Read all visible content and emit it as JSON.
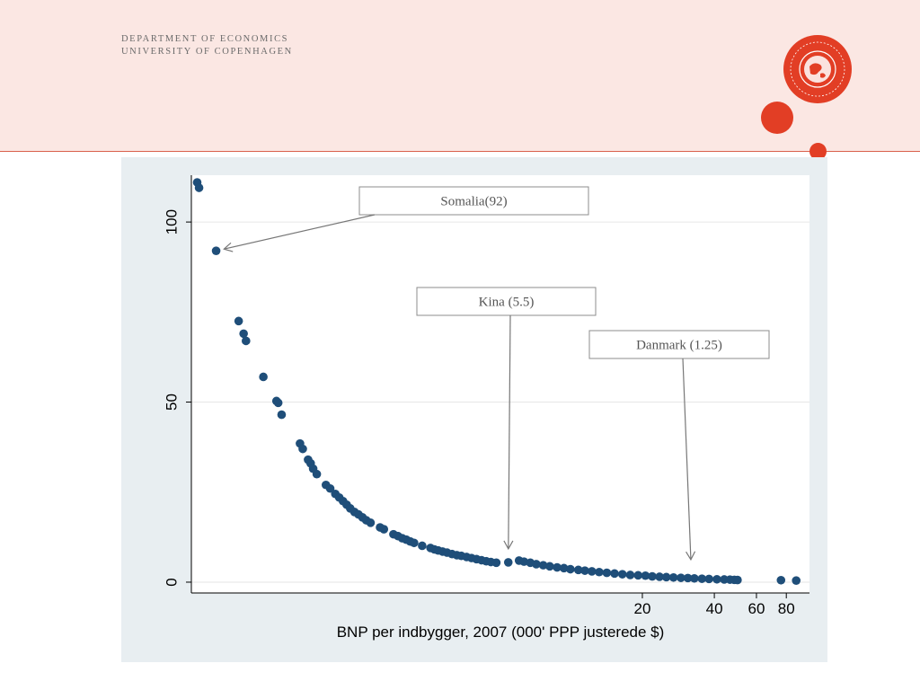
{
  "header": {
    "line1": "DEPARTMENT OF ECONOMICS",
    "line2": "UNIVERSITY OF COPENHAGEN",
    "seal_label": "SOCIALIS · SIGILLUM FACULTATIS SCIENTIARUM",
    "accent_color": "#e23e25",
    "band_color": "#fbe7e3"
  },
  "chart_data": {
    "type": "scatter",
    "title": "",
    "xlabel": "BNP per indbygger, 2007 (000' PPP justerede $)",
    "ylabel": "",
    "x_scale": "log",
    "xlim": [
      0.26,
      100
    ],
    "ylim": [
      -3,
      113
    ],
    "x_ticks": [
      "20",
      "40",
      "60",
      "80"
    ],
    "x_tick_values": [
      20,
      40,
      60,
      80
    ],
    "y_ticks": [
      "0",
      "50",
      "100"
    ],
    "y_tick_values": [
      0,
      50,
      100
    ],
    "grid": "horizontal",
    "marker_color": "#1f4e79",
    "annotations": [
      {
        "label": "Somalia(92)",
        "x": 0.33,
        "y": 92
      },
      {
        "label": "Kina (5.5)",
        "x": 5.5,
        "y": 7
      },
      {
        "label": "Danmark (1.25)",
        "x": 32,
        "y": 4
      }
    ],
    "points": [
      [
        0.275,
        111
      ],
      [
        0.28,
        109.5
      ],
      [
        0.33,
        92
      ],
      [
        0.41,
        72.5
      ],
      [
        0.43,
        69
      ],
      [
        0.44,
        67
      ],
      [
        0.52,
        57
      ],
      [
        0.59,
        50.3
      ],
      [
        0.6,
        49.8
      ],
      [
        0.62,
        46.5
      ],
      [
        0.74,
        38.5
      ],
      [
        0.76,
        37
      ],
      [
        0.8,
        34
      ],
      [
        0.82,
        33
      ],
      [
        0.84,
        31.5
      ],
      [
        0.87,
        30
      ],
      [
        0.95,
        27
      ],
      [
        0.99,
        26
      ],
      [
        1.04,
        24.5
      ],
      [
        1.08,
        23.5
      ],
      [
        1.12,
        22.5
      ],
      [
        1.16,
        21.5
      ],
      [
        1.2,
        20.5
      ],
      [
        1.25,
        19.5
      ],
      [
        1.3,
        18.8
      ],
      [
        1.35,
        18
      ],
      [
        1.4,
        17.2
      ],
      [
        1.46,
        16.5
      ],
      [
        1.6,
        15.2
      ],
      [
        1.66,
        14.7
      ],
      [
        1.82,
        13.3
      ],
      [
        1.9,
        12.8
      ],
      [
        1.98,
        12.2
      ],
      [
        2.06,
        11.8
      ],
      [
        2.14,
        11.3
      ],
      [
        2.22,
        10.9
      ],
      [
        2.4,
        10.1
      ],
      [
        2.6,
        9.5
      ],
      [
        2.7,
        9.1
      ],
      [
        2.8,
        8.8
      ],
      [
        2.92,
        8.5
      ],
      [
        3.05,
        8.2
      ],
      [
        3.2,
        7.8
      ],
      [
        3.35,
        7.5
      ],
      [
        3.5,
        7.3
      ],
      [
        3.68,
        7.0
      ],
      [
        3.86,
        6.7
      ],
      [
        4.05,
        6.4
      ],
      [
        4.25,
        6.1
      ],
      [
        4.45,
        5.8
      ],
      [
        4.65,
        5.6
      ],
      [
        4.9,
        5.4
      ],
      [
        5.5,
        5.5
      ],
      [
        6.1,
        6.0
      ],
      [
        6.4,
        5.7
      ],
      [
        6.8,
        5.4
      ],
      [
        7.2,
        5.0
      ],
      [
        7.7,
        4.7
      ],
      [
        8.2,
        4.4
      ],
      [
        8.8,
        4.1
      ],
      [
        9.4,
        3.9
      ],
      [
        10.0,
        3.6
      ],
      [
        10.8,
        3.4
      ],
      [
        11.5,
        3.2
      ],
      [
        12.3,
        3.0
      ],
      [
        13.2,
        2.8
      ],
      [
        14.2,
        2.6
      ],
      [
        15.3,
        2.4
      ],
      [
        16.5,
        2.2
      ],
      [
        17.8,
        2.0
      ],
      [
        19.2,
        1.9
      ],
      [
        20.6,
        1.8
      ],
      [
        22,
        1.6
      ],
      [
        23.6,
        1.5
      ],
      [
        25.2,
        1.4
      ],
      [
        27,
        1.3
      ],
      [
        29,
        1.2
      ],
      [
        31,
        1.15
      ],
      [
        33,
        1.05
      ],
      [
        35.5,
        0.95
      ],
      [
        38,
        0.9
      ],
      [
        41,
        0.8
      ],
      [
        44,
        0.75
      ],
      [
        46.5,
        0.7
      ],
      [
        48.5,
        0.65
      ],
      [
        50,
        0.6
      ],
      [
        76,
        0.55
      ],
      [
        88,
        0.45
      ]
    ]
  }
}
